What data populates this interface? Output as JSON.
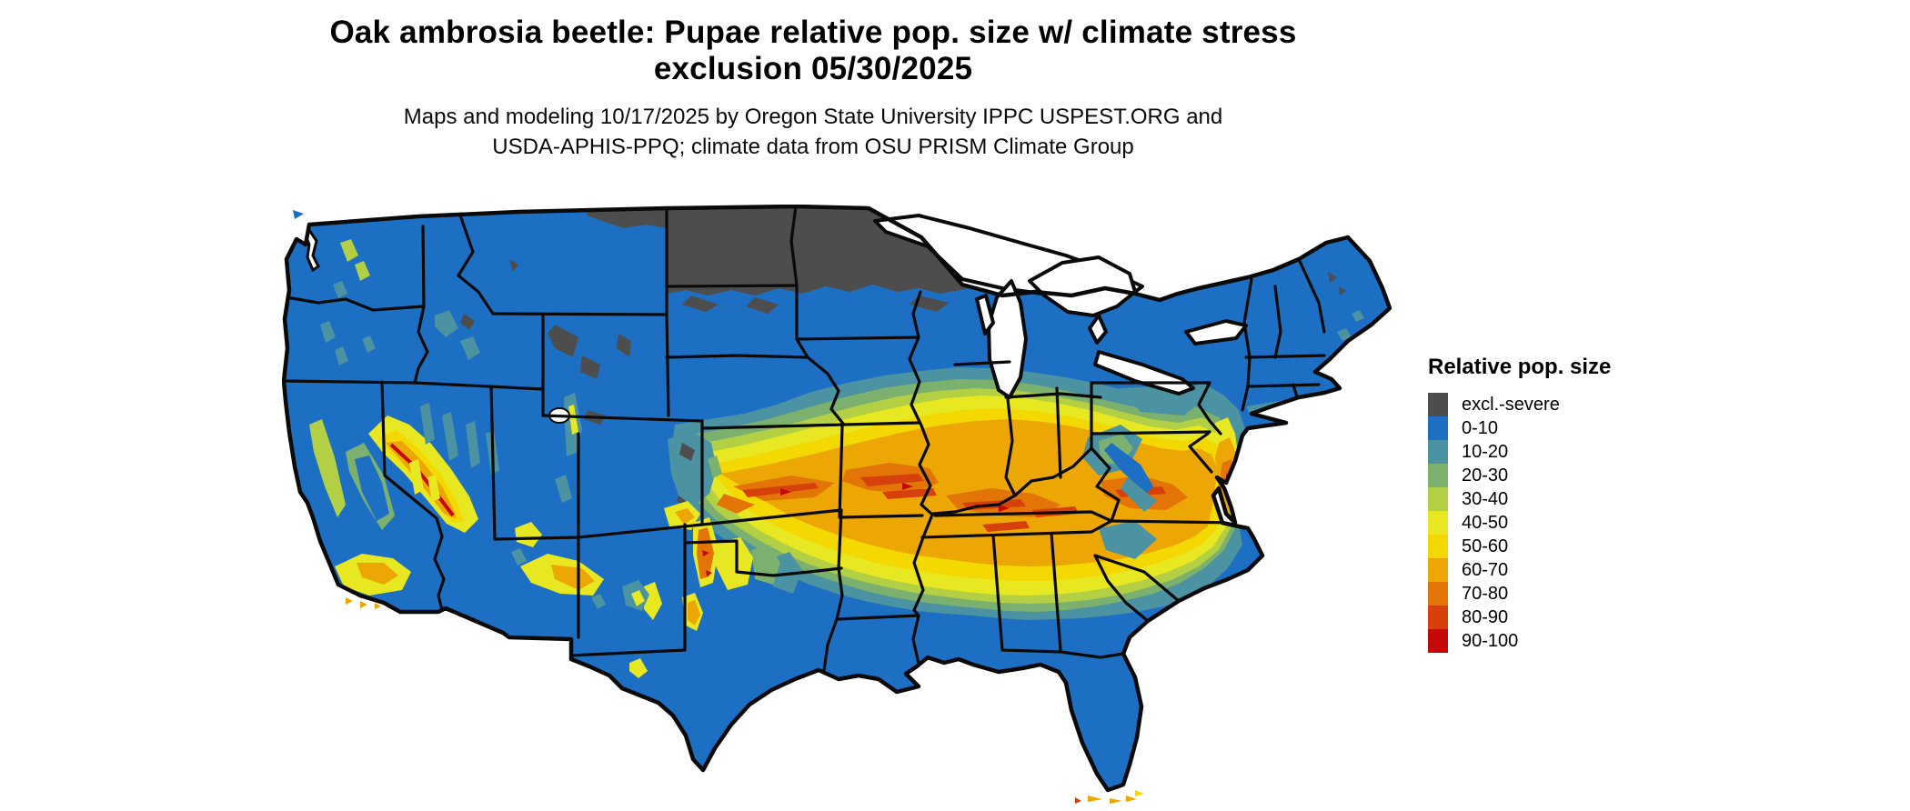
{
  "header": {
    "title_line1": "Oak ambrosia beetle: Pupae relative pop. size w/ climate stress",
    "title_line2": "exclusion 05/30/2025",
    "subtitle_line1": "Maps and modeling 10/17/2025 by Oregon State University IPPC USPEST.ORG and",
    "subtitle_line2": "USDA-APHIS-PPQ; climate data from OSU PRISM Climate Group"
  },
  "legend": {
    "title": "Relative pop. size",
    "entries": [
      {
        "label": "excl.-severe",
        "color": "#4d4d4d"
      },
      {
        "label": "0-10",
        "color": "#1d6fc4"
      },
      {
        "label": "10-20",
        "color": "#4b92a3"
      },
      {
        "label": "20-30",
        "color": "#7bb06e"
      },
      {
        "label": "30-40",
        "color": "#b3cf44"
      },
      {
        "label": "40-50",
        "color": "#e7e822"
      },
      {
        "label": "50-60",
        "color": "#f4d802"
      },
      {
        "label": "60-70",
        "color": "#eda704"
      },
      {
        "label": "70-80",
        "color": "#e27505"
      },
      {
        "label": "80-90",
        "color": "#d6400a"
      },
      {
        "label": "90-100",
        "color": "#c50909"
      }
    ]
  },
  "map": {
    "background": "#ffffff",
    "border_color": "#0a0a0a",
    "water_color": "#ffffff",
    "base_class": "0-10",
    "features": [
      {
        "region": "North Dakota, Minnesota, northern Wisconsin, upper Michigan fringe, northern Montana edge",
        "class": "excl.-severe"
      },
      {
        "region": "Most of the US (base): Pacific NW, Great Basin, Texas, Gulf states, Florida, New England",
        "class": "0-10"
      },
      {
        "region": "Central hot band: Kansas, Missouri, southern Illinois/Indiana, Kentucky, western Virginia, Delmarva",
        "class": "60-80 with 80-100 streaks"
      },
      {
        "region": "Band margins: Nebraska, Iowa, Ohio, Tennessee, Oklahoma, North Carolina, New Jersey",
        "class": "20-60 gradient"
      },
      {
        "region": "Western mountains: Sierra Nevada, southern California ranges, Mogollon Rim, New Mexico ranges",
        "class": "40-90"
      },
      {
        "region": "Rockies in Wyoming/Colorado and Maine uplands",
        "class": "excl.-severe patches"
      },
      {
        "region": "Florida Keys",
        "class": "50-90 specks"
      }
    ]
  }
}
